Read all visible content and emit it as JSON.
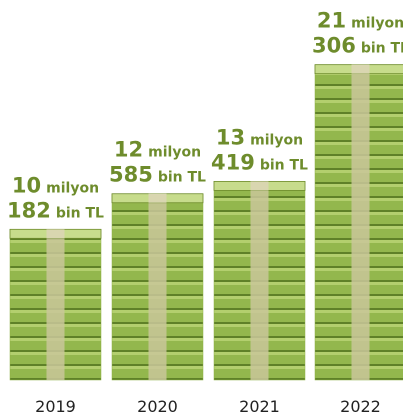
{
  "chart_data": {
    "type": "bar",
    "categories": [
      "2019",
      "2020",
      "2021",
      "2022"
    ],
    "values": [
      10182000,
      12585000,
      13419000,
      21306000
    ],
    "value_labels": [
      [
        "10",
        "milyon",
        "182",
        "bin TL"
      ],
      [
        "12",
        "milyon",
        "585",
        "bin TL"
      ],
      [
        "13",
        "milyon",
        "419",
        "bin TL"
      ],
      [
        "21",
        "milyon",
        "306",
        "bin TL"
      ]
    ],
    "color": "#8db045"
  }
}
